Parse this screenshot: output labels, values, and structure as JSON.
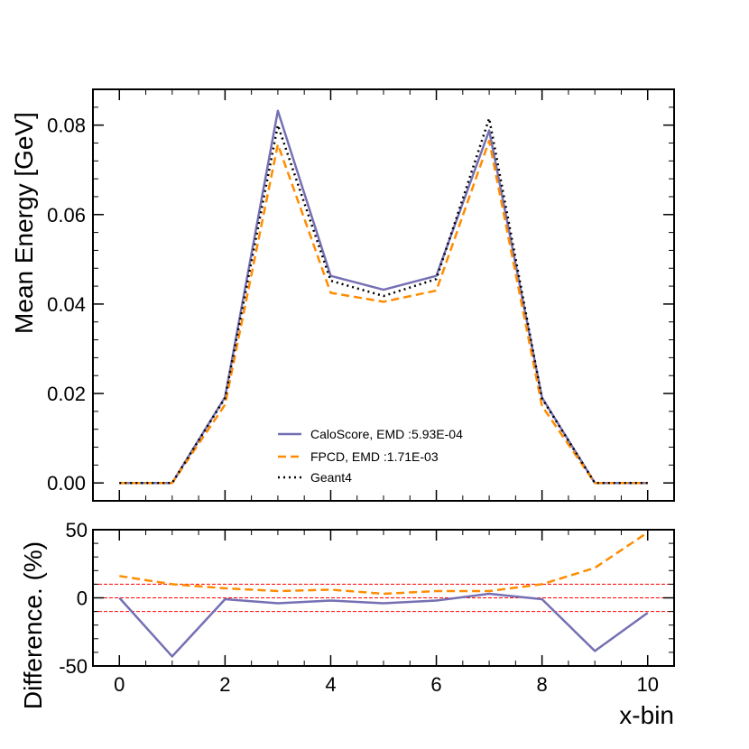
{
  "chart_data": [
    {
      "type": "line",
      "panel": "main",
      "x": [
        0,
        1,
        2,
        3,
        4,
        5,
        6,
        7,
        8,
        9,
        10
      ],
      "ylabel": "Mean Energy [GeV]",
      "xlabel": "",
      "ylim": [
        -0.004,
        0.088
      ],
      "xlim": [
        -0.5,
        10.5
      ],
      "yticks": [
        0.0,
        0.02,
        0.04,
        0.06,
        0.08
      ],
      "ytick_labels": [
        "0.00",
        "0.02",
        "0.04",
        "0.06",
        "0.08"
      ],
      "legend_position": "lower-center",
      "series": [
        {
          "name": "CaloScore, EMD :5.93E-04",
          "color": "#7570b3",
          "style": "solid",
          "values": [
            0.0,
            0.0,
            0.0192,
            0.0832,
            0.0463,
            0.0432,
            0.0463,
            0.0788,
            0.0191,
            0.0,
            0.0
          ]
        },
        {
          "name": "FPCD, EMD :1.71E-03",
          "color": "#ff8c00",
          "style": "dashed",
          "values": [
            0.0,
            0.0,
            0.0175,
            0.0757,
            0.0425,
            0.0405,
            0.043,
            0.0765,
            0.0172,
            0.0,
            0.0
          ]
        },
        {
          "name": "Geant4",
          "color": "#000000",
          "style": "dotted",
          "values": [
            0.0,
            0.0,
            0.019,
            0.08,
            0.0452,
            0.0418,
            0.0456,
            0.0815,
            0.0189,
            0.0,
            0.0
          ]
        }
      ]
    },
    {
      "type": "line",
      "panel": "ratio",
      "x": [
        0,
        1,
        2,
        3,
        4,
        5,
        6,
        7,
        8,
        9,
        10
      ],
      "ylabel": "Difference. (%)",
      "xlabel": "x-bin",
      "ylim": [
        -50,
        50
      ],
      "xlim": [
        -0.5,
        10.5
      ],
      "yticks": [
        -50,
        0,
        50
      ],
      "ytick_labels": [
        "-50",
        "0",
        "50"
      ],
      "xticks": [
        0,
        2,
        4,
        6,
        8,
        10
      ],
      "xtick_labels": [
        "0",
        "2",
        "4",
        "6",
        "8",
        "10"
      ],
      "reference_lines": [
        10,
        0,
        -10
      ],
      "reference_color": "#ff0000",
      "series": [
        {
          "name": "CaloScore",
          "color": "#7570b3",
          "style": "solid",
          "values": [
            0,
            -43,
            -1,
            -4,
            -2,
            -4,
            -2,
            3,
            -1,
            -39,
            -11
          ]
        },
        {
          "name": "FPCD",
          "color": "#ff8c00",
          "style": "dashed",
          "values": [
            16,
            10,
            7,
            5,
            6,
            3,
            5,
            5,
            10,
            22,
            48
          ]
        }
      ]
    }
  ]
}
